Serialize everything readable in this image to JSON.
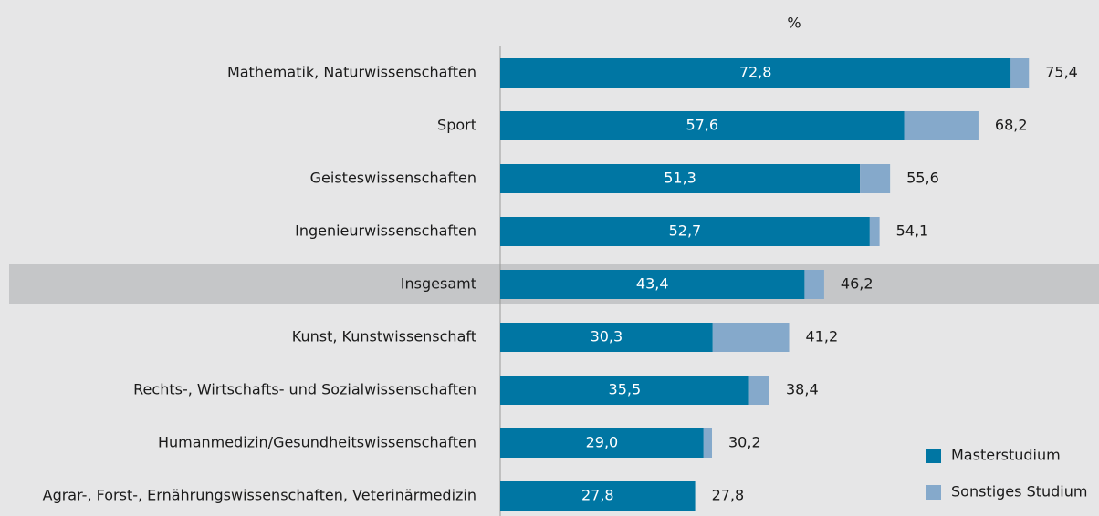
{
  "chart_data": {
    "type": "stacked-barh",
    "axis_label": "%",
    "categories": [
      "Mathematik, Naturwissenschaften",
      "Sport",
      "Geisteswissenschaften",
      "Ingenieurwissenschaften",
      "Insgesamt",
      "Kunst, Kunstwissenschaft",
      "Rechts-, Wirtschafts- und Sozialwissenschaften",
      "Humanmedizin/Gesundheitswissenschaften",
      "Agrar-, Forst-, Ernährungswissenschaften, Veterinärmedizin"
    ],
    "series": [
      {
        "name": "Masterstudium",
        "color": "#0076a3",
        "values": [
          72.8,
          57.6,
          51.3,
          52.7,
          43.4,
          30.3,
          35.5,
          29.0,
          27.8
        ],
        "value_labels": [
          "72,8",
          "57,6",
          "51,3",
          "52,7",
          "43,4",
          "30,3",
          "35,5",
          "29,0",
          "27,8"
        ]
      },
      {
        "name": "Sonstiges Studium",
        "color": "#85a9cb",
        "values": [
          2.6,
          10.6,
          4.3,
          1.4,
          2.8,
          10.9,
          2.9,
          1.2,
          0.0
        ]
      }
    ],
    "totals": [
      75.4,
      68.2,
      55.6,
      54.1,
      46.2,
      41.2,
      38.4,
      30.2,
      27.8
    ],
    "total_labels": [
      "75,4",
      "68,2",
      "55,6",
      "54,1",
      "46,2",
      "41,2",
      "38,4",
      "30,2",
      "27,8"
    ],
    "highlight_index": 4,
    "xlim": [
      0,
      85
    ]
  }
}
